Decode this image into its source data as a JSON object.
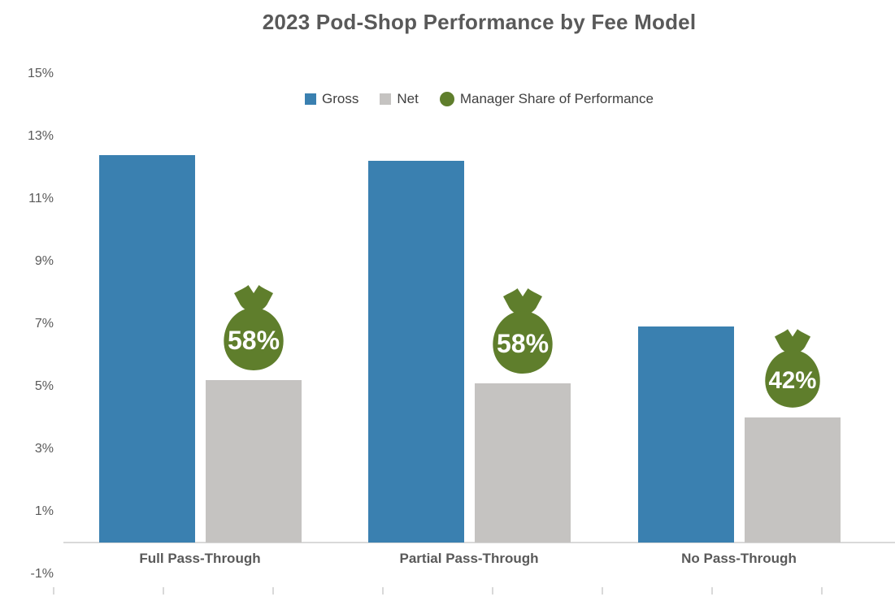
{
  "chart_data": {
    "type": "bar",
    "title": "2023 Pod-Shop Performance by Fee Model",
    "categories": [
      "Full Pass-Through",
      "Partial Pass-Through",
      "No Pass-Through"
    ],
    "series": [
      {
        "name": "Gross",
        "color": "#3A80B0",
        "values": [
          12.4,
          12.2,
          6.9
        ]
      },
      {
        "name": "Net",
        "color": "#C5C3C1",
        "values": [
          5.2,
          5.1,
          4.0
        ]
      }
    ],
    "annotations": {
      "name": "Manager Share of Performance",
      "icon": "money-bag-icon",
      "color": "#5F7E2C",
      "text_color": "#FFFFFF",
      "labels": [
        "58%",
        "58%",
        "42%"
      ]
    },
    "y_axis": {
      "min": -1,
      "max": 15,
      "tick_step": 2,
      "unit": "%",
      "tick_labels": [
        "15%",
        "13%",
        "11%",
        "9%",
        "7%",
        "5%",
        "3%",
        "1%",
        "-1%"
      ]
    },
    "legend": {
      "position": "top-center",
      "entries": [
        "Gross",
        "Net",
        "Manager Share of Performance"
      ]
    },
    "grid": false
  },
  "colors": {
    "gross_bar": "#3A80B0",
    "net_bar": "#C5C3C1",
    "manager_bag": "#5F7E2C",
    "bag_text": "#FFFFFF",
    "title_text": "#595959",
    "axis_text": "#595959",
    "legend_text": "#404040",
    "axis_line": "#D9D9D9"
  }
}
